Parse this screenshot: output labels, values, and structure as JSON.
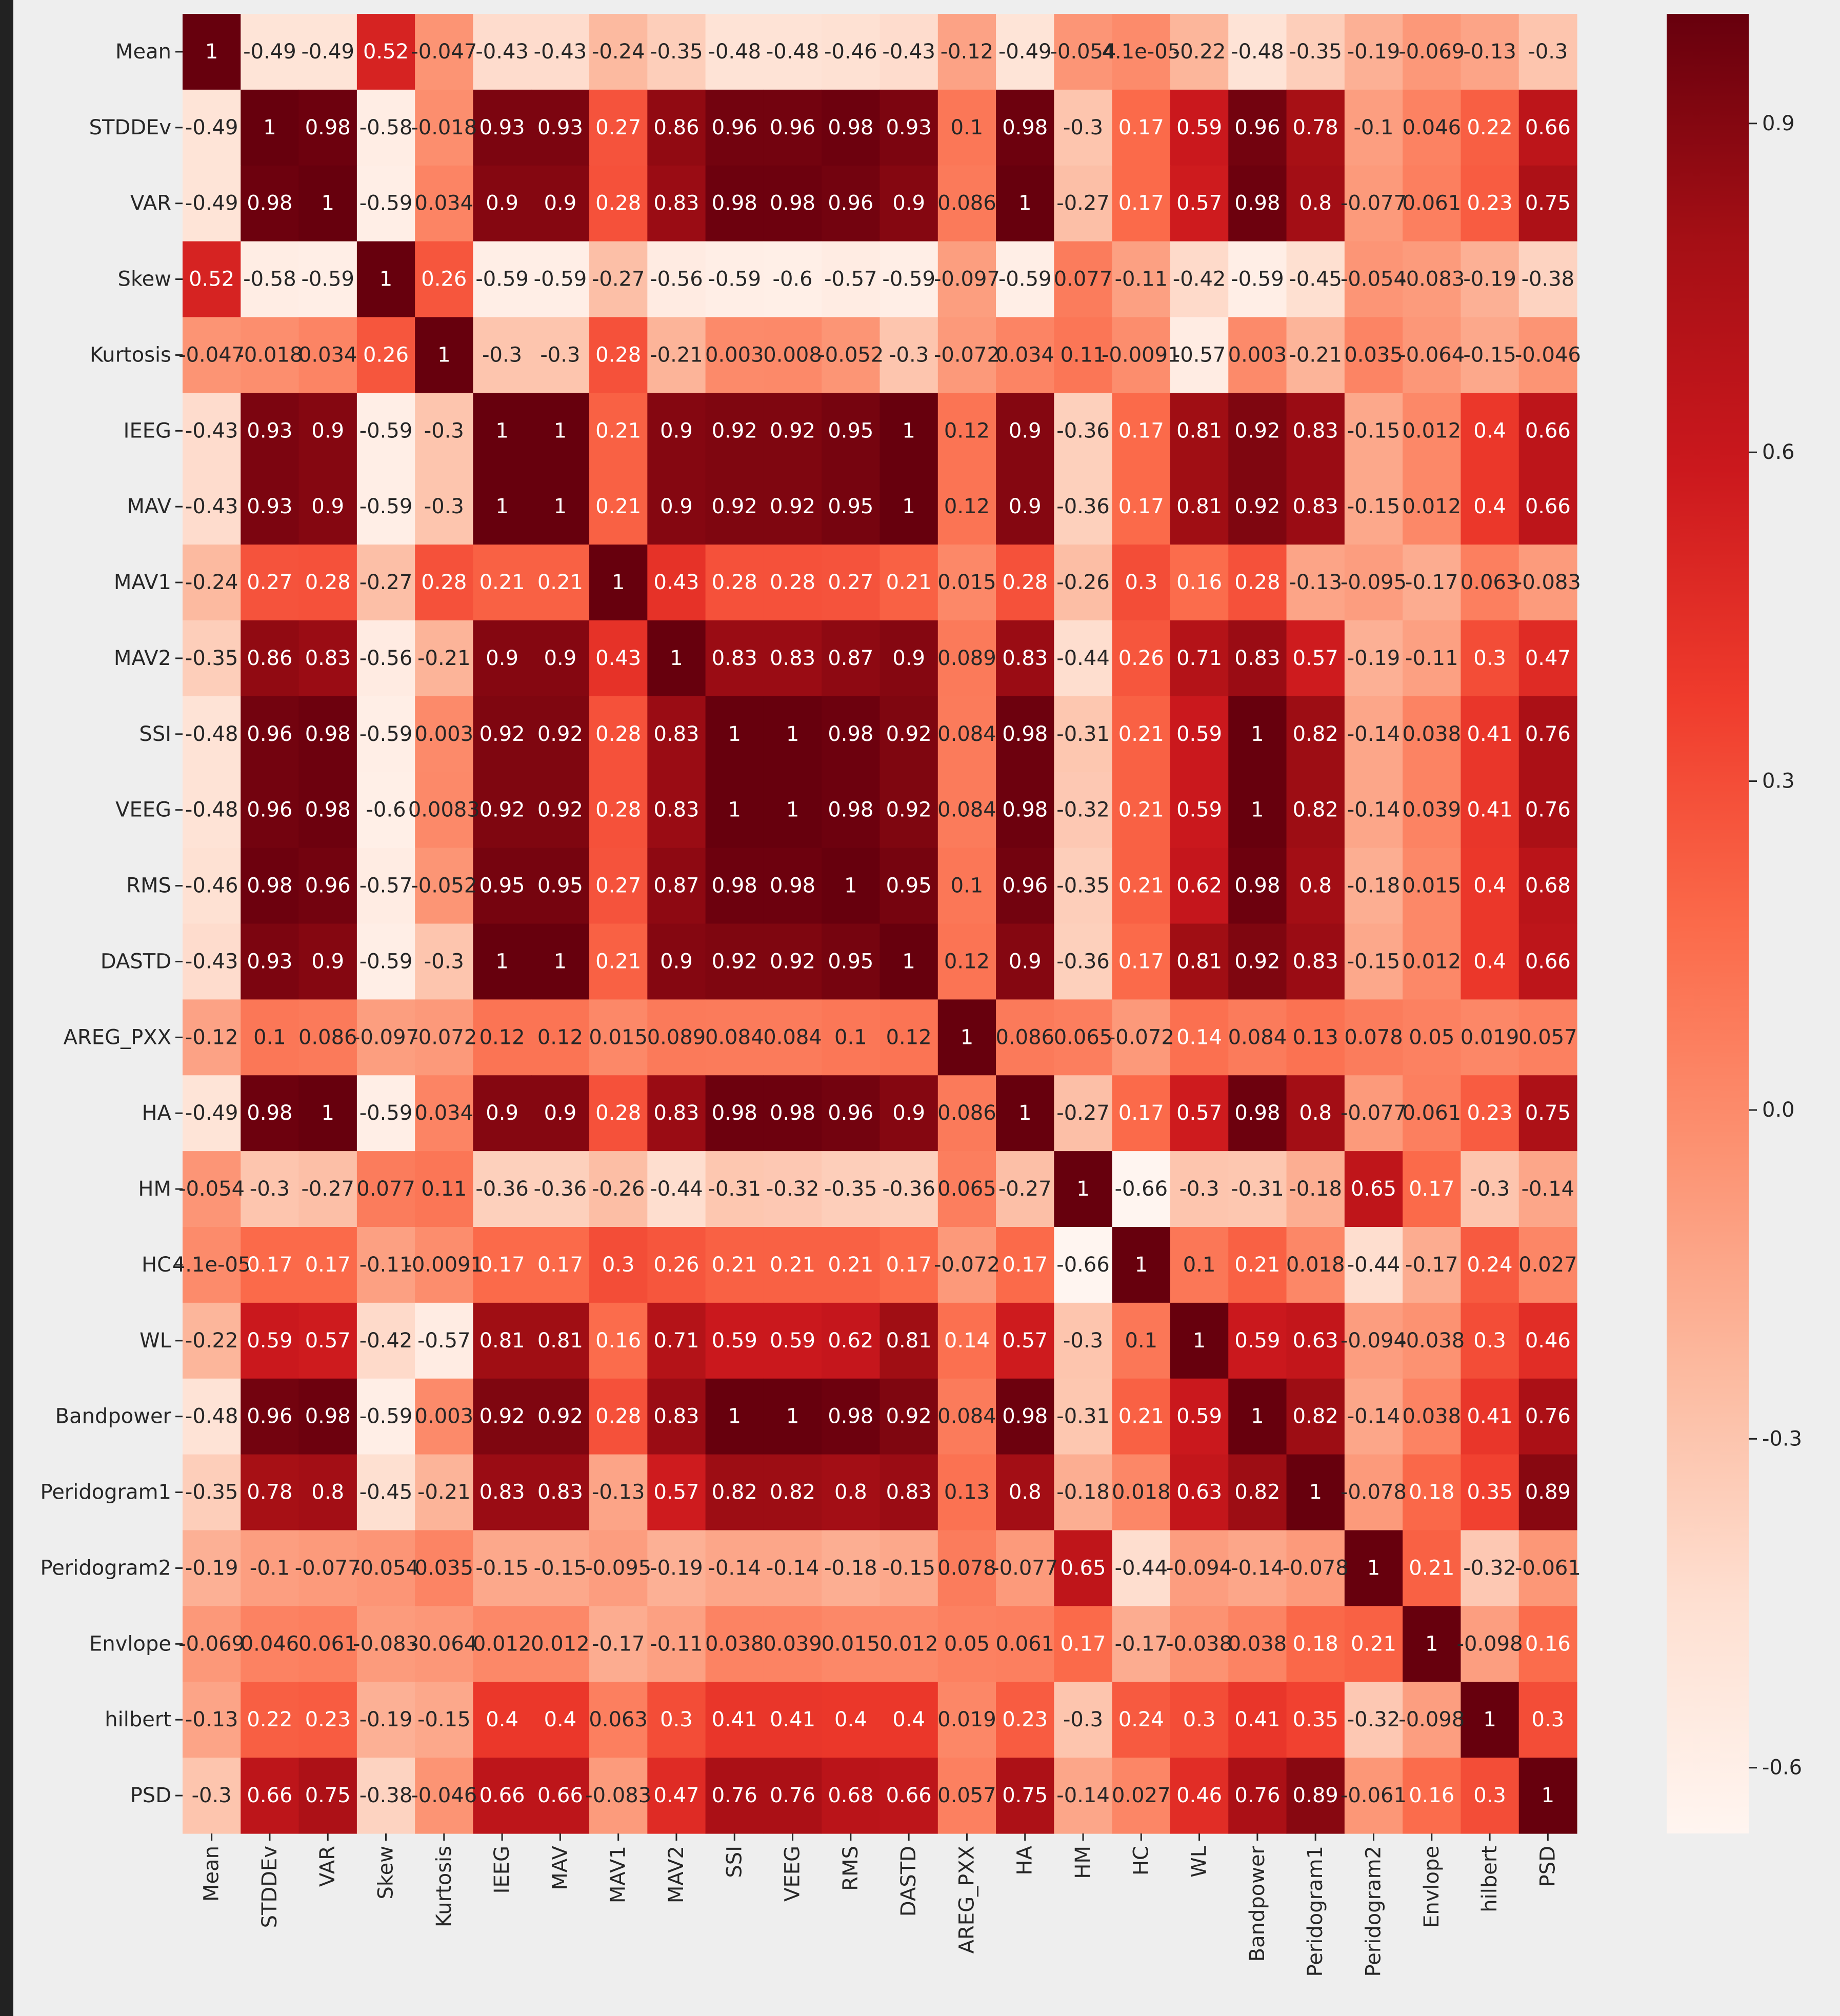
{
  "chart_data": {
    "type": "heatmap",
    "title": "",
    "xlabel": "",
    "ylabel": "",
    "x_labels": [
      "Mean",
      "STDDEv",
      "VAR",
      "Skew",
      "Kurtosis",
      "IEEG",
      "MAV",
      "MAV1",
      "MAV2",
      "SSI",
      "VEEG",
      "RMS",
      "DASTD",
      "AREG_PXX",
      "HA",
      "HM",
      "HC",
      "WL",
      "Bandpower",
      "Peridogram1",
      "Peridogram2",
      "Envlope",
      "hilbert",
      "PSD"
    ],
    "y_labels": [
      "Mean",
      "STDDEv",
      "VAR",
      "Skew",
      "Kurtosis",
      "IEEG",
      "MAV",
      "MAV1",
      "MAV2",
      "SSI",
      "VEEG",
      "RMS",
      "DASTD",
      "AREG_PXX",
      "HA",
      "HM",
      "HC",
      "WL",
      "Bandpower",
      "Peridogram1",
      "Peridogram2",
      "Envlope",
      "hilbert",
      "PSD"
    ],
    "values": [
      [
        "1",
        "-0.49",
        "-0.49",
        "0.52",
        "-0.047",
        "-0.43",
        "-0.43",
        "-0.24",
        "-0.35",
        "-0.48",
        "-0.48",
        "-0.46",
        "-0.43",
        "-0.12",
        "-0.49",
        "-0.054",
        "4.1e-05",
        "-0.22",
        "-0.48",
        "-0.35",
        "-0.19",
        "-0.069",
        "-0.13",
        "-0.3"
      ],
      [
        "-0.49",
        "1",
        "0.98",
        "-0.58",
        "-0.018",
        "0.93",
        "0.93",
        "0.27",
        "0.86",
        "0.96",
        "0.96",
        "0.98",
        "0.93",
        "0.1",
        "0.98",
        "-0.3",
        "0.17",
        "0.59",
        "0.96",
        "0.78",
        "-0.1",
        "0.046",
        "0.22",
        "0.66"
      ],
      [
        "-0.49",
        "0.98",
        "1",
        "-0.59",
        "0.034",
        "0.9",
        "0.9",
        "0.28",
        "0.83",
        "0.98",
        "0.98",
        "0.96",
        "0.9",
        "0.086",
        "1",
        "-0.27",
        "0.17",
        "0.57",
        "0.98",
        "0.8",
        "-0.077",
        "0.061",
        "0.23",
        "0.75"
      ],
      [
        "0.52",
        "-0.58",
        "-0.59",
        "1",
        "0.26",
        "-0.59",
        "-0.59",
        "-0.27",
        "-0.56",
        "-0.59",
        "-0.6",
        "-0.57",
        "-0.59",
        "-0.097",
        "-0.59",
        "0.077",
        "-0.11",
        "-0.42",
        "-0.59",
        "-0.45",
        "-0.054",
        "-0.083",
        "-0.19",
        "-0.38"
      ],
      [
        "-0.047",
        "-0.018",
        "0.034",
        "0.26",
        "1",
        "-0.3",
        "-0.3",
        "0.28",
        "-0.21",
        "0.003",
        "0.008",
        "-0.052",
        "-0.3",
        "-0.072",
        "0.034",
        "0.11",
        "-0.0091",
        "-0.57",
        "0.003",
        "-0.21",
        "0.035",
        "-0.064",
        "-0.15",
        "-0.046"
      ],
      [
        "-0.43",
        "0.93",
        "0.9",
        "-0.59",
        "-0.3",
        "1",
        "1",
        "0.21",
        "0.9",
        "0.92",
        "0.92",
        "0.95",
        "1",
        "0.12",
        "0.9",
        "-0.36",
        "0.17",
        "0.81",
        "0.92",
        "0.83",
        "-0.15",
        "0.012",
        "0.4",
        "0.66"
      ],
      [
        "-0.43",
        "0.93",
        "0.9",
        "-0.59",
        "-0.3",
        "1",
        "1",
        "0.21",
        "0.9",
        "0.92",
        "0.92",
        "0.95",
        "1",
        "0.12",
        "0.9",
        "-0.36",
        "0.17",
        "0.81",
        "0.92",
        "0.83",
        "-0.15",
        "0.012",
        "0.4",
        "0.66"
      ],
      [
        "-0.24",
        "0.27",
        "0.28",
        "-0.27",
        "0.28",
        "0.21",
        "0.21",
        "1",
        "0.43",
        "0.28",
        "0.28",
        "0.27",
        "0.21",
        "0.015",
        "0.28",
        "-0.26",
        "0.3",
        "0.16",
        "0.28",
        "-0.13",
        "-0.095",
        "-0.17",
        "0.063",
        "-0.083"
      ],
      [
        "-0.35",
        "0.86",
        "0.83",
        "-0.56",
        "-0.21",
        "0.9",
        "0.9",
        "0.43",
        "1",
        "0.83",
        "0.83",
        "0.87",
        "0.9",
        "0.089",
        "0.83",
        "-0.44",
        "0.26",
        "0.71",
        "0.83",
        "0.57",
        "-0.19",
        "-0.11",
        "0.3",
        "0.47"
      ],
      [
        "-0.48",
        "0.96",
        "0.98",
        "-0.59",
        "0.003",
        "0.92",
        "0.92",
        "0.28",
        "0.83",
        "1",
        "1",
        "0.98",
        "0.92",
        "0.084",
        "0.98",
        "-0.31",
        "0.21",
        "0.59",
        "1",
        "0.82",
        "-0.14",
        "0.038",
        "0.41",
        "0.76"
      ],
      [
        "-0.48",
        "0.96",
        "0.98",
        "-0.6",
        "0.0083",
        "0.92",
        "0.92",
        "0.28",
        "0.83",
        "1",
        "1",
        "0.98",
        "0.92",
        "0.084",
        "0.98",
        "-0.32",
        "0.21",
        "0.59",
        "1",
        "0.82",
        "-0.14",
        "0.039",
        "0.41",
        "0.76"
      ],
      [
        "-0.46",
        "0.98",
        "0.96",
        "-0.57",
        "-0.052",
        "0.95",
        "0.95",
        "0.27",
        "0.87",
        "0.98",
        "0.98",
        "1",
        "0.95",
        "0.1",
        "0.96",
        "-0.35",
        "0.21",
        "0.62",
        "0.98",
        "0.8",
        "-0.18",
        "0.015",
        "0.4",
        "0.68"
      ],
      [
        "-0.43",
        "0.93",
        "0.9",
        "-0.59",
        "-0.3",
        "1",
        "1",
        "0.21",
        "0.9",
        "0.92",
        "0.92",
        "0.95",
        "1",
        "0.12",
        "0.9",
        "-0.36",
        "0.17",
        "0.81",
        "0.92",
        "0.83",
        "-0.15",
        "0.012",
        "0.4",
        "0.66"
      ],
      [
        "-0.12",
        "0.1",
        "0.086",
        "-0.097",
        "-0.072",
        "0.12",
        "0.12",
        "0.015",
        "0.089",
        "0.084",
        "0.084",
        "0.1",
        "0.12",
        "1",
        "0.086",
        "0.065",
        "-0.072",
        "0.14",
        "0.084",
        "0.13",
        "0.078",
        "0.05",
        "0.019",
        "0.057"
      ],
      [
        "-0.49",
        "0.98",
        "1",
        "-0.59",
        "0.034",
        "0.9",
        "0.9",
        "0.28",
        "0.83",
        "0.98",
        "0.98",
        "0.96",
        "0.9",
        "0.086",
        "1",
        "-0.27",
        "0.17",
        "0.57",
        "0.98",
        "0.8",
        "-0.077",
        "0.061",
        "0.23",
        "0.75"
      ],
      [
        "-0.054",
        "-0.3",
        "-0.27",
        "0.077",
        "0.11",
        "-0.36",
        "-0.36",
        "-0.26",
        "-0.44",
        "-0.31",
        "-0.32",
        "-0.35",
        "-0.36",
        "0.065",
        "-0.27",
        "1",
        "-0.66",
        "-0.3",
        "-0.31",
        "-0.18",
        "0.65",
        "0.17",
        "-0.3",
        "-0.14"
      ],
      [
        "4.1e-05",
        "0.17",
        "0.17",
        "-0.11",
        "-0.0091",
        "0.17",
        "0.17",
        "0.3",
        "0.26",
        "0.21",
        "0.21",
        "0.21",
        "0.17",
        "-0.072",
        "0.17",
        "-0.66",
        "1",
        "0.1",
        "0.21",
        "0.018",
        "-0.44",
        "-0.17",
        "0.24",
        "0.027"
      ],
      [
        "-0.22",
        "0.59",
        "0.57",
        "-0.42",
        "-0.57",
        "0.81",
        "0.81",
        "0.16",
        "0.71",
        "0.59",
        "0.59",
        "0.62",
        "0.81",
        "0.14",
        "0.57",
        "-0.3",
        "0.1",
        "1",
        "0.59",
        "0.63",
        "-0.094",
        "-0.038",
        "0.3",
        "0.46"
      ],
      [
        "-0.48",
        "0.96",
        "0.98",
        "-0.59",
        "0.003",
        "0.92",
        "0.92",
        "0.28",
        "0.83",
        "1",
        "1",
        "0.98",
        "0.92",
        "0.084",
        "0.98",
        "-0.31",
        "0.21",
        "0.59",
        "1",
        "0.82",
        "-0.14",
        "0.038",
        "0.41",
        "0.76"
      ],
      [
        "-0.35",
        "0.78",
        "0.8",
        "-0.45",
        "-0.21",
        "0.83",
        "0.83",
        "-0.13",
        "0.57",
        "0.82",
        "0.82",
        "0.8",
        "0.83",
        "0.13",
        "0.8",
        "-0.18",
        "0.018",
        "0.63",
        "0.82",
        "1",
        "-0.078",
        "0.18",
        "0.35",
        "0.89"
      ],
      [
        "-0.19",
        "-0.1",
        "-0.077",
        "-0.054",
        "0.035",
        "-0.15",
        "-0.15",
        "-0.095",
        "-0.19",
        "-0.14",
        "-0.14",
        "-0.18",
        "-0.15",
        "0.078",
        "-0.077",
        "0.65",
        "-0.44",
        "-0.094",
        "-0.14",
        "-0.078",
        "1",
        "0.21",
        "-0.32",
        "-0.061"
      ],
      [
        "-0.069",
        "0.046",
        "0.061",
        "-0.083",
        "-0.064",
        "0.012",
        "0.012",
        "-0.17",
        "-0.11",
        "0.038",
        "0.039",
        "0.015",
        "0.012",
        "0.05",
        "0.061",
        "0.17",
        "-0.17",
        "-0.038",
        "0.038",
        "0.18",
        "0.21",
        "1",
        "-0.098",
        "0.16"
      ],
      [
        "-0.13",
        "0.22",
        "0.23",
        "-0.19",
        "-0.15",
        "0.4",
        "0.4",
        "0.063",
        "0.3",
        "0.41",
        "0.41",
        "0.4",
        "0.4",
        "0.019",
        "0.23",
        "-0.3",
        "0.24",
        "0.3",
        "0.41",
        "0.35",
        "-0.32",
        "-0.098",
        "1",
        "0.3"
      ],
      [
        "-0.3",
        "0.66",
        "0.75",
        "-0.38",
        "-0.046",
        "0.66",
        "0.66",
        "-0.083",
        "0.47",
        "0.76",
        "0.76",
        "0.68",
        "0.66",
        "0.057",
        "0.75",
        "-0.14",
        "0.027",
        "0.46",
        "0.76",
        "0.89",
        "-0.061",
        "0.16",
        "0.3",
        "1"
      ]
    ],
    "colorbar": {
      "vmin": -0.66,
      "vmax": 1.0,
      "ticks": [
        "0.9",
        "0.6",
        "0.3",
        "0.0",
        "-0.3",
        "-0.6"
      ],
      "colormap": "Reds",
      "color_stops": [
        "#fff5f0",
        "#fee0d2",
        "#fcbba1",
        "#fc9272",
        "#fb6a4a",
        "#ef3b2c",
        "#cb181d",
        "#a50f15",
        "#67000d"
      ]
    },
    "grid": false,
    "legend": "colorbar-right"
  },
  "colors": {
    "figure_background": "#eeeeee",
    "left_edge_bar": "#222222"
  }
}
